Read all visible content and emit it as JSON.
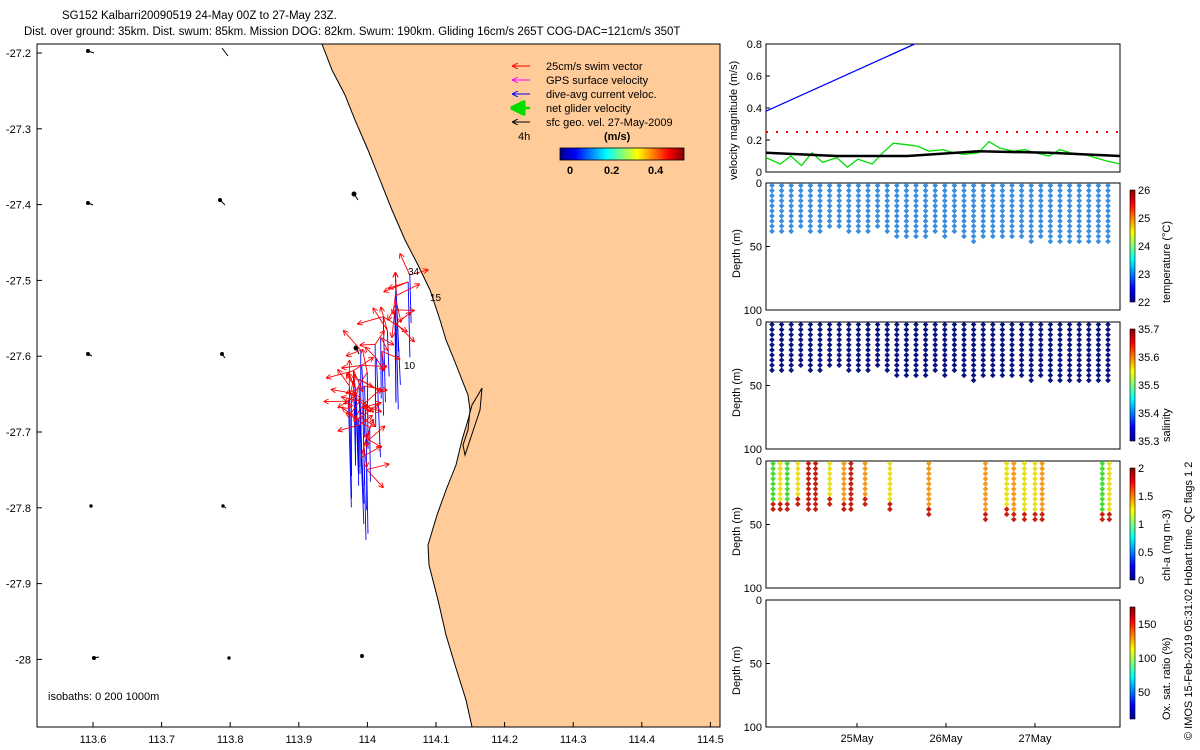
{
  "title": {
    "line1": "SG152 Kalbarri20090519 24-May 00Z to 27-May 23Z.",
    "line2": "Dist. over ground: 35km. Dist. swum: 85km. Mission DOG: 82km. Swum: 190km. Gliding 16cm/s 265T COG-DAC=121cm/s 350T"
  },
  "colors": {
    "land": "#FECB99",
    "swim": "#FF0000",
    "gps": "#FF00FF",
    "dac": "#0000FF",
    "net": "#00DD00",
    "geo": "#000000"
  },
  "map": {
    "xticks": [
      "113.6",
      "113.7",
      "113.8",
      "113.9",
      "114",
      "114.1",
      "114.2",
      "114.3",
      "114.4",
      "114.5"
    ],
    "yticks": [
      "-27.2",
      "-27.3",
      "-27.4",
      "-27.5",
      "-27.6",
      "-27.7",
      "-27.8",
      "-27.9",
      "-28"
    ],
    "legend": [
      {
        "label": "25cm/s swim vector",
        "color": "#FF0000"
      },
      {
        "label": "GPS surface velocity",
        "color": "#FF00FF"
      },
      {
        "label": "dive-avg current veloc.",
        "color": "#0000FF"
      },
      {
        "label": "net glider velocity",
        "color": "#00DD00"
      },
      {
        "label": "sfc geo. vel. 27-May-2009",
        "color": "#000000"
      }
    ],
    "legend_4h": "4h",
    "colorbar_unit": "(m/s)",
    "colorbar_ticks": [
      "0",
      "0.2",
      "0.4"
    ],
    "isobaths": "isobaths: 0   200  1000m",
    "labels": [
      "34",
      "15",
      "10"
    ]
  },
  "chart_data": [
    {
      "type": "line",
      "title": "",
      "ylabel": "velocity magnitude (m/s)",
      "ylim": [
        0,
        0.8
      ],
      "yticks": [
        "0",
        "0.2",
        "0.4",
        "0.6",
        "0.8"
      ],
      "series": [
        {
          "name": "dive-avg current speed",
          "color": "#0000FF",
          "x": [
            0,
            0.42
          ],
          "y": [
            0.38,
            0.8
          ]
        },
        {
          "name": "swim vector",
          "color": "#FF0000",
          "style": "dotted",
          "x": [
            0,
            1
          ],
          "y": [
            0.25,
            0.25
          ]
        },
        {
          "name": "net glider velocity",
          "color": "#00DD00",
          "x": [
            0,
            0.04,
            0.07,
            0.1,
            0.13,
            0.16,
            0.2,
            0.23,
            0.26,
            0.3,
            0.33,
            0.36,
            0.4,
            0.43,
            0.46,
            0.5,
            0.53,
            0.56,
            0.6,
            0.63,
            0.66,
            0.7,
            0.73,
            0.76,
            0.8,
            0.83,
            0.86,
            0.9,
            0.93,
            0.96,
            1.0
          ],
          "y": [
            0.09,
            0.05,
            0.1,
            0.04,
            0.12,
            0.06,
            0.09,
            0.03,
            0.08,
            0.05,
            0.12,
            0.18,
            0.17,
            0.16,
            0.13,
            0.14,
            0.12,
            0.11,
            0.12,
            0.19,
            0.15,
            0.13,
            0.14,
            0.12,
            0.1,
            0.14,
            0.12,
            0.11,
            0.09,
            0.07,
            0.05
          ]
        },
        {
          "name": "sfc geo velocity",
          "color": "#000000",
          "x": [
            0,
            0.2,
            0.4,
            0.6,
            0.8,
            1.0
          ],
          "y": [
            0.12,
            0.1,
            0.1,
            0.13,
            0.12,
            0.1
          ]
        }
      ]
    },
    {
      "type": "scatter",
      "ylabel": "Depth (m)",
      "ylim": [
        0,
        100
      ],
      "yticks": [
        "0",
        "50",
        "100"
      ],
      "colorbar_label": "temperature (°C)",
      "colorbar_ticks": [
        "22",
        "23",
        "24",
        "25",
        "26"
      ],
      "color": "#3A8EDF",
      "max_depth": [
        38,
        40,
        38,
        37,
        38,
        38,
        36,
        37,
        39,
        38,
        40,
        36,
        41,
        42,
        44,
        45,
        45,
        40,
        42,
        38,
        45,
        46,
        45,
        44,
        45,
        43,
        44,
        46,
        45,
        48,
        47,
        48,
        47,
        48,
        49,
        49
      ]
    },
    {
      "type": "scatter",
      "ylabel": "Depth (m)",
      "ylim": [
        0,
        100
      ],
      "yticks": [
        "0",
        "50",
        "100"
      ],
      "colorbar_label": "salinity",
      "colorbar_ticks": [
        "35.3",
        "35.4",
        "35.5",
        "35.6",
        "35.7"
      ],
      "color": "#0A1480",
      "max_depth": [
        38,
        40,
        38,
        37,
        38,
        38,
        36,
        37,
        39,
        38,
        40,
        36,
        41,
        42,
        44,
        45,
        45,
        40,
        42,
        38,
        45,
        46,
        45,
        44,
        45,
        43,
        44,
        46,
        45,
        48,
        47,
        48,
        47,
        48,
        49,
        49
      ]
    },
    {
      "type": "scatter",
      "ylabel": "Depth (m)",
      "ylim": [
        0,
        100
      ],
      "yticks": [
        "0",
        "50",
        "100"
      ],
      "colorbar_label": "chl-a (mg m-3)",
      "colorbar_ticks": [
        "0",
        "0.5",
        "1",
        "1.5",
        "2"
      ],
      "profiles": [
        {
          "x": 0.02,
          "d": 38,
          "c": "green"
        },
        {
          "x": 0.04,
          "d": 40,
          "c": "yellow"
        },
        {
          "x": 0.06,
          "d": 38,
          "c": "green"
        },
        {
          "x": 0.09,
          "d": 37,
          "c": "yellow"
        },
        {
          "x": 0.12,
          "d": 38,
          "c": "red"
        },
        {
          "x": 0.14,
          "d": 40,
          "c": "red"
        },
        {
          "x": 0.18,
          "d": 36,
          "c": "yellow"
        },
        {
          "x": 0.22,
          "d": 38,
          "c": "orange"
        },
        {
          "x": 0.24,
          "d": 39,
          "c": "red"
        },
        {
          "x": 0.28,
          "d": 37,
          "c": "orange"
        },
        {
          "x": 0.35,
          "d": 38,
          "c": "yellow"
        },
        {
          "x": 0.46,
          "d": 42,
          "c": "orange"
        },
        {
          "x": 0.62,
          "d": 47,
          "c": "orange"
        },
        {
          "x": 0.68,
          "d": 45,
          "c": "yellow"
        },
        {
          "x": 0.7,
          "d": 48,
          "c": "orange"
        },
        {
          "x": 0.73,
          "d": 46,
          "c": "yellow"
        },
        {
          "x": 0.76,
          "d": 49,
          "c": "yellow"
        },
        {
          "x": 0.78,
          "d": 48,
          "c": "orange"
        },
        {
          "x": 0.95,
          "d": 48,
          "c": "green"
        },
        {
          "x": 0.97,
          "d": 47,
          "c": "yellow"
        }
      ]
    },
    {
      "type": "scatter",
      "ylabel": "Depth (m)",
      "ylim": [
        0,
        100
      ],
      "yticks": [
        "0",
        "50",
        "100"
      ],
      "colorbar_label": "Ox. sat. ratio (%)",
      "colorbar_ticks": [
        "50",
        "100",
        "150"
      ],
      "xticks": [
        "25May",
        "26May",
        "27May"
      ]
    }
  ],
  "side_note": "© IMOS 15-Feb-2019 05:31:02 Hobart time. QC flags 1  2"
}
